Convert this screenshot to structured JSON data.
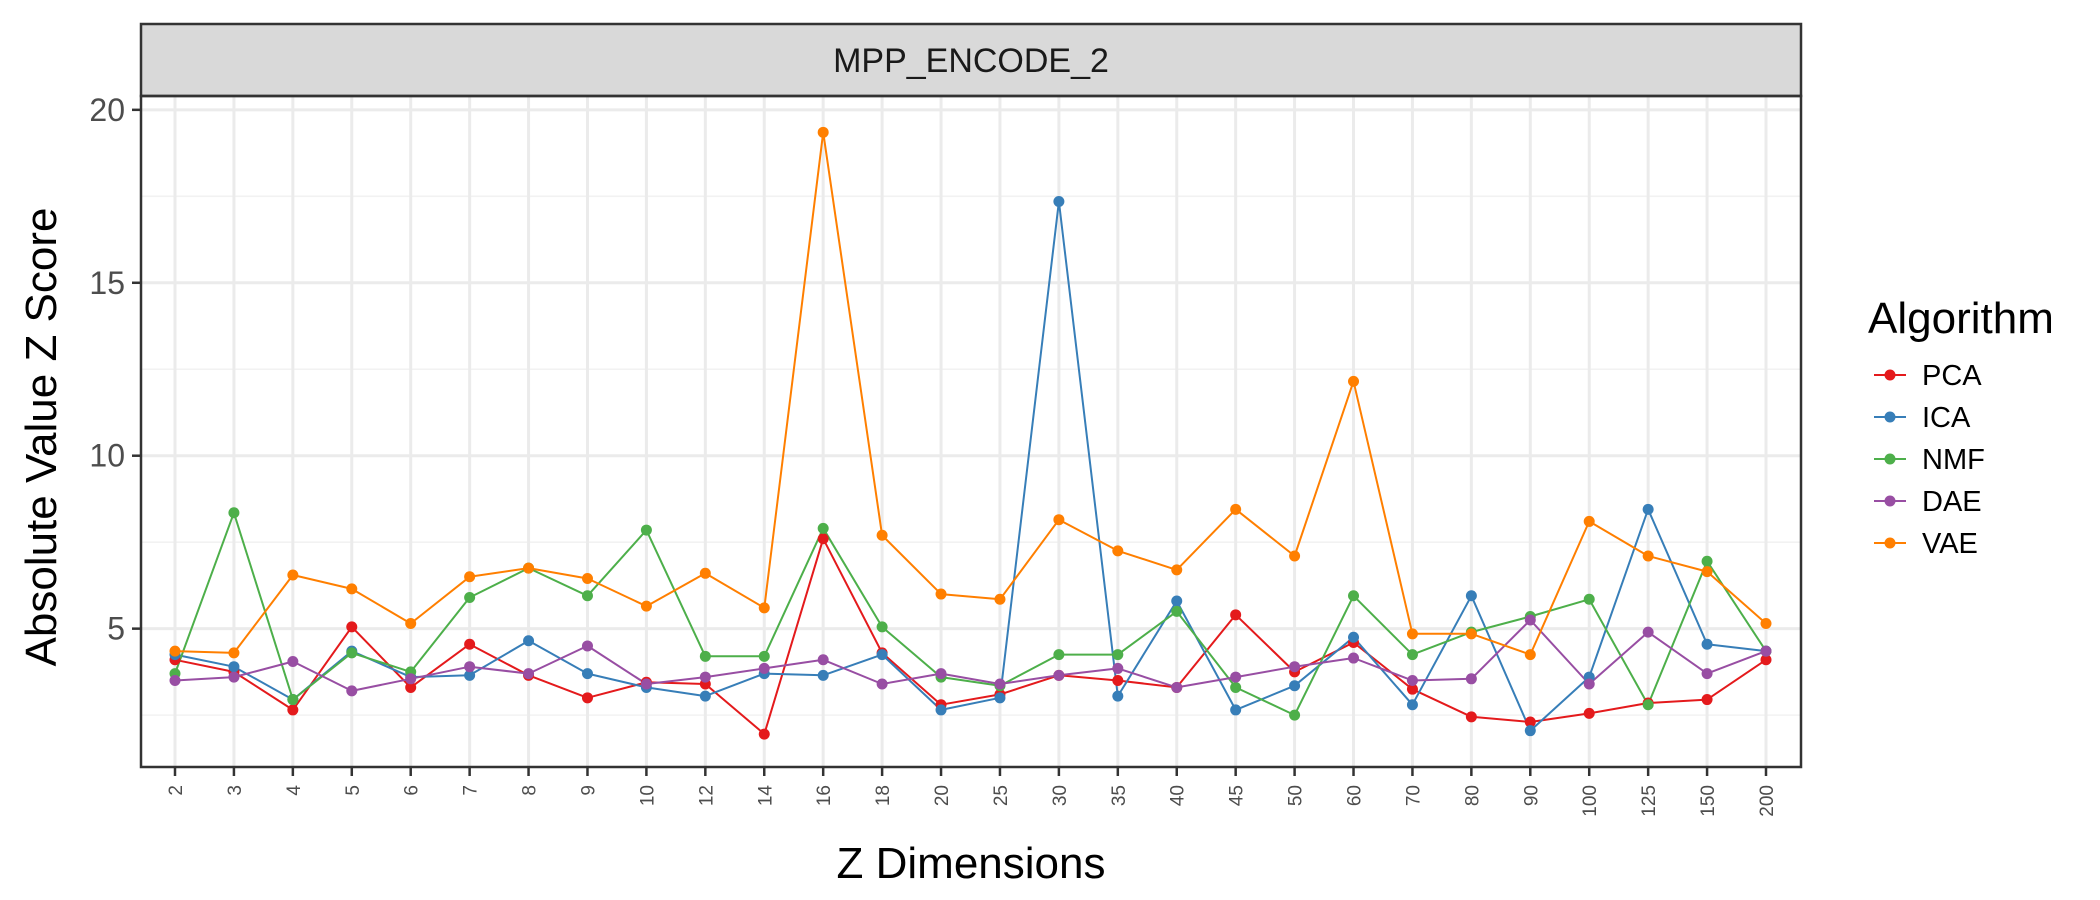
{
  "chart_data": {
    "type": "line",
    "facet_title": "MPP_ENCODE_2",
    "xlabel": "Z Dimensions",
    "ylabel": "Absolute Value Z Score",
    "ylim": [
      1.0,
      20.4
    ],
    "yticks": [
      5,
      10,
      15,
      20
    ],
    "categories": [
      "2",
      "3",
      "4",
      "5",
      "6",
      "7",
      "8",
      "9",
      "10",
      "12",
      "14",
      "16",
      "18",
      "20",
      "25",
      "30",
      "35",
      "40",
      "45",
      "50",
      "60",
      "70",
      "80",
      "90",
      "100",
      "125",
      "150",
      "200"
    ],
    "legend": {
      "title": "Algorithm",
      "position": "right"
    },
    "grid": true,
    "series": [
      {
        "name": "PCA",
        "color": "#E41A1C",
        "values": [
          4.1,
          3.75,
          2.65,
          5.05,
          3.3,
          4.55,
          3.65,
          3.0,
          3.45,
          3.4,
          1.95,
          7.6,
          4.3,
          2.8,
          3.1,
          3.65,
          3.5,
          3.3,
          5.4,
          3.75,
          4.6,
          3.25,
          2.45,
          2.3,
          2.55,
          2.85,
          2.95,
          4.1
        ]
      },
      {
        "name": "ICA",
        "color": "#377EB8",
        "values": [
          4.25,
          3.9,
          2.95,
          4.35,
          3.6,
          3.65,
          4.65,
          3.7,
          3.3,
          3.05,
          3.7,
          3.65,
          4.25,
          2.65,
          3.0,
          17.35,
          3.05,
          5.8,
          2.65,
          3.35,
          4.75,
          2.8,
          5.95,
          2.05,
          3.6,
          8.45,
          4.55,
          4.35
        ]
      },
      {
        "name": "NMF",
        "color": "#4DAF4A",
        "values": [
          3.7,
          8.35,
          2.95,
          4.3,
          3.75,
          5.9,
          6.75,
          5.95,
          7.85,
          4.2,
          4.2,
          7.9,
          5.05,
          3.6,
          3.35,
          4.25,
          4.25,
          5.5,
          3.3,
          2.5,
          5.95,
          4.25,
          4.9,
          5.35,
          5.85,
          2.8,
          6.95,
          4.35
        ]
      },
      {
        "name": "DAE",
        "color": "#984EA3",
        "values": [
          3.5,
          3.6,
          4.05,
          3.2,
          3.55,
          3.9,
          3.7,
          4.5,
          3.4,
          3.6,
          3.85,
          4.1,
          3.4,
          3.7,
          3.4,
          3.65,
          3.85,
          3.3,
          3.6,
          3.9,
          4.15,
          3.5,
          3.55,
          5.25,
          3.4,
          4.9,
          3.7,
          4.35
        ]
      },
      {
        "name": "VAE",
        "color": "#FF7F00",
        "values": [
          4.35,
          4.3,
          6.55,
          6.15,
          5.15,
          6.5,
          6.75,
          6.45,
          5.65,
          6.6,
          5.6,
          19.35,
          7.7,
          6.0,
          5.85,
          8.15,
          7.25,
          6.7,
          8.45,
          7.1,
          12.15,
          4.85,
          4.85,
          4.25,
          8.1,
          7.1,
          6.65,
          5.15
        ]
      }
    ]
  }
}
